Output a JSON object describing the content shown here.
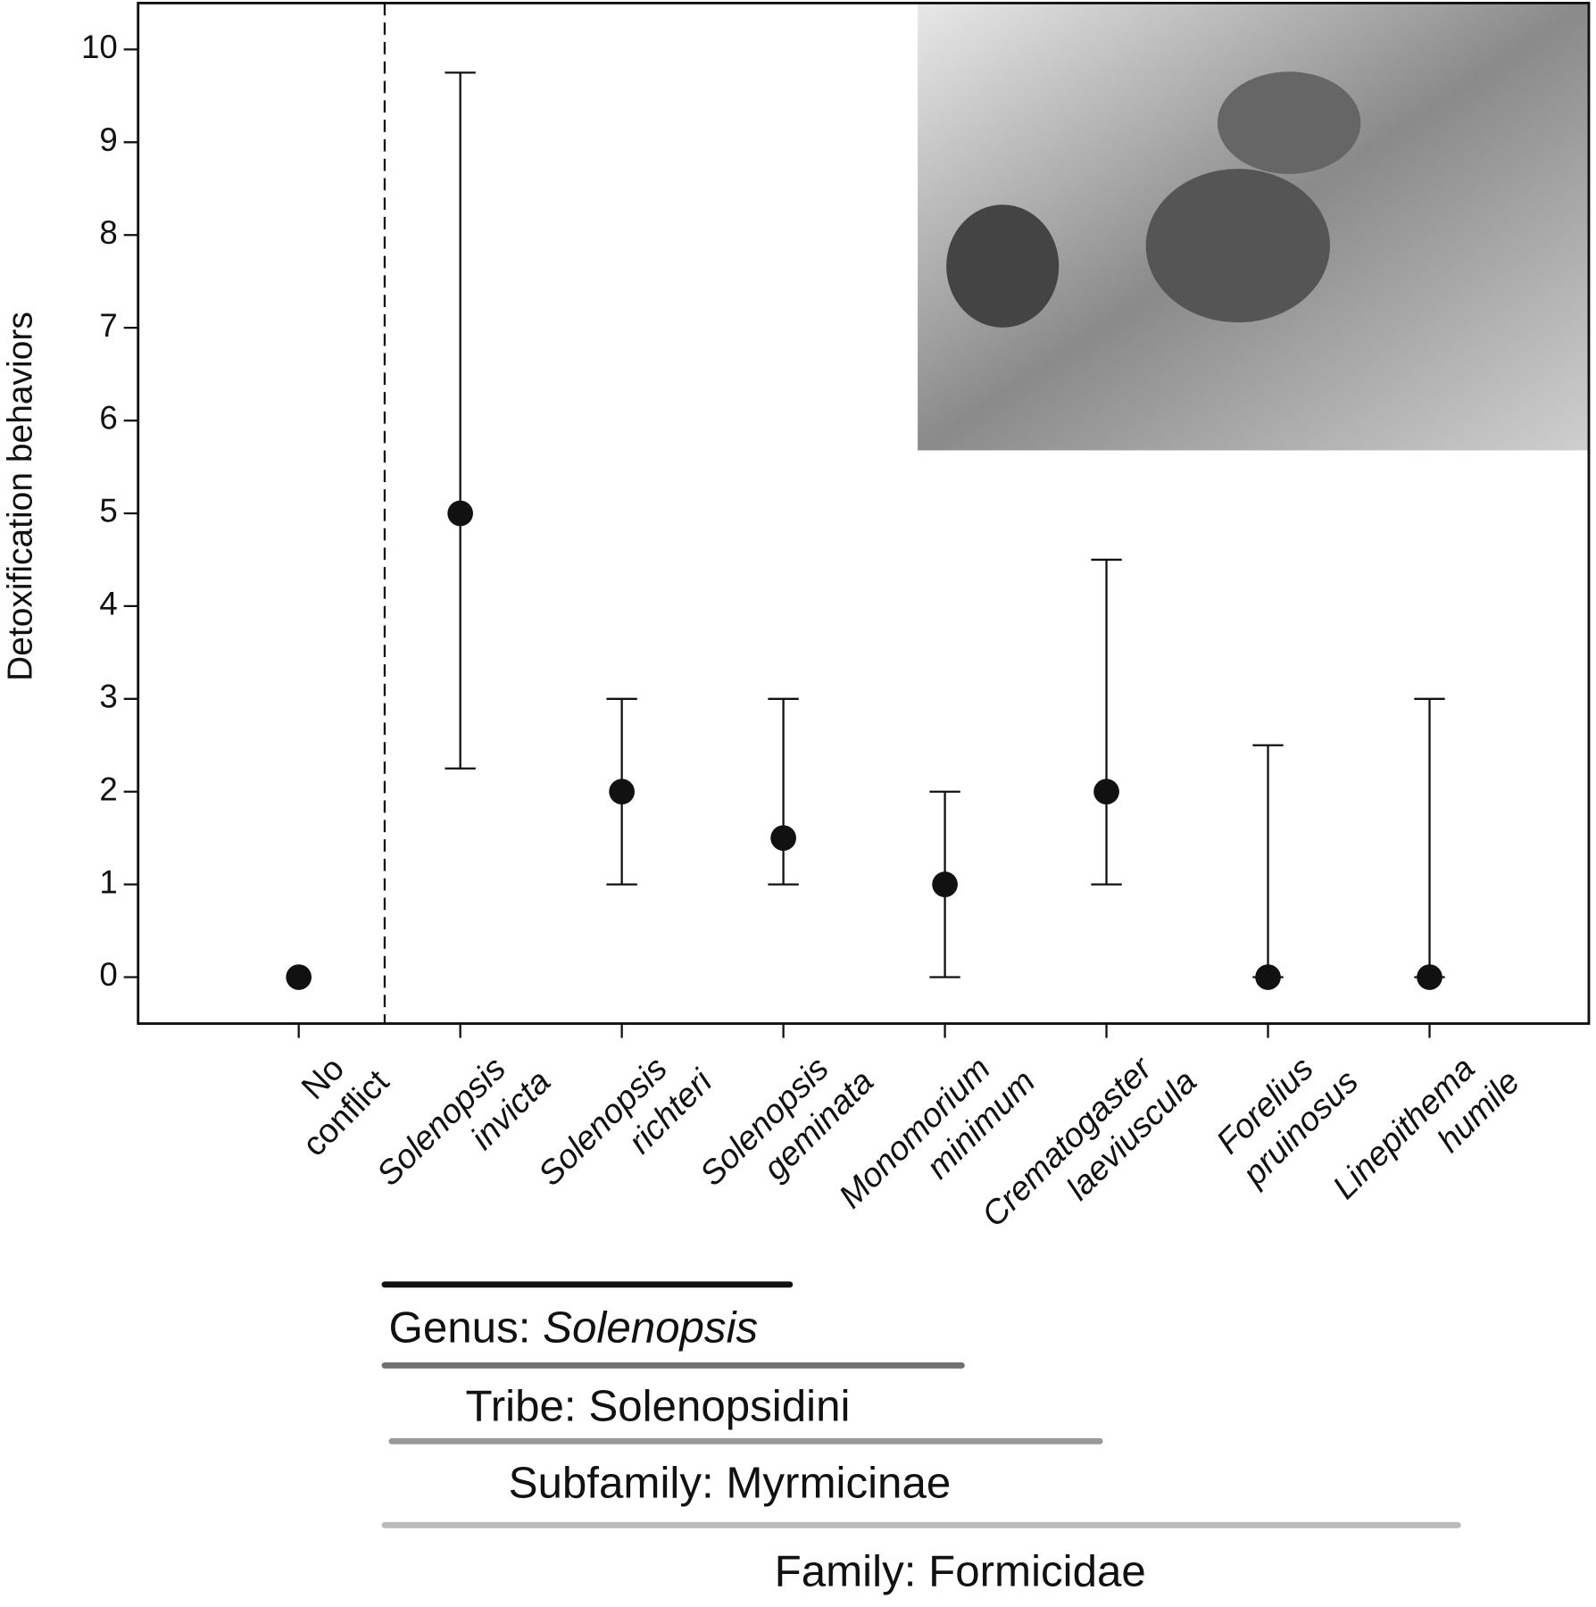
{
  "chart_data": {
    "type": "errorbar",
    "y_label": "Detoxification behaviors",
    "categories": [
      [
        "No",
        "conflict"
      ],
      [
        "Solenopsis",
        "invicta"
      ],
      [
        "Solenopsis",
        "richteri"
      ],
      [
        "Solenopsis",
        "geminata"
      ],
      [
        "Monomorium",
        "minimum"
      ],
      [
        "Crematogaster",
        "laeviuscula"
      ],
      [
        "Forelius",
        "pruinosus"
      ],
      [
        "Linepithema",
        "humile"
      ]
    ],
    "values": [
      0,
      5,
      2,
      1.5,
      1,
      2,
      0,
      0
    ],
    "lower": [
      null,
      2.25,
      1,
      1,
      0,
      1,
      0,
      0
    ],
    "upper": [
      null,
      9.75,
      3,
      3,
      2,
      4.5,
      2.5,
      3
    ],
    "color": "#111111",
    "ylim": [
      -0.5,
      10.5
    ],
    "yticks": [
      0,
      1,
      2,
      3,
      4,
      5,
      6,
      7,
      8,
      9,
      10
    ],
    "taxonomy": [
      {
        "rank": "Genus:",
        "name": "Solenopsis",
        "color": "#111111"
      },
      {
        "rank": "Tribe:",
        "name": "Solenopsidini",
        "color": "#707070"
      },
      {
        "rank": "Subfamily:",
        "name": "Myrmicinae",
        "color": "#999999"
      },
      {
        "rank": "Family:",
        "name": "Formicidae",
        "color": "#bbbbbb"
      }
    ]
  }
}
